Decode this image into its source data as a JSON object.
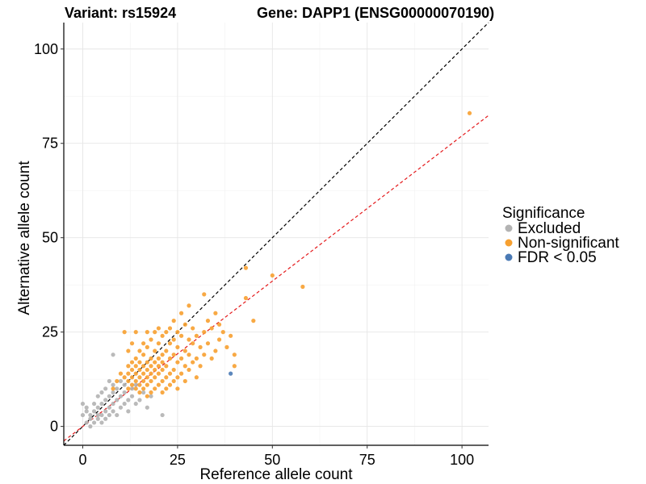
{
  "header": {
    "variant": "Variant: rs15924",
    "gene": "Gene: DAPP1 (ENSG00000070190)"
  },
  "chart_data": {
    "type": "scatter",
    "xlabel": "Reference allele count",
    "ylabel": "Alternative allele count",
    "xlim": [
      -5,
      107
    ],
    "ylim": [
      -5,
      107
    ],
    "xticks": [
      0,
      25,
      50,
      75,
      100
    ],
    "yticks": [
      0,
      25,
      50,
      75,
      100
    ],
    "grid": true,
    "legend_position": "right",
    "legend": {
      "title": "Significance",
      "items": [
        {
          "label": "Excluded",
          "color": "#b3b3b3"
        },
        {
          "label": "Non-significant",
          "color": "#f7a030"
        },
        {
          "label": "FDR < 0.05",
          "color": "#4a7ab5"
        }
      ]
    },
    "reference_lines": [
      {
        "name": "identity",
        "slope": 1,
        "intercept": 0,
        "color": "#000000",
        "dash": true
      },
      {
        "name": "fit",
        "slope": 0.77,
        "intercept": 0,
        "color": "#e41a1c",
        "dash": true
      }
    ],
    "series": [
      {
        "name": "Excluded",
        "color": "#b3b3b3",
        "points": [
          [
            0,
            3
          ],
          [
            0,
            6
          ],
          [
            1,
            1
          ],
          [
            1,
            4
          ],
          [
            1,
            5
          ],
          [
            2,
            0
          ],
          [
            2,
            2
          ],
          [
            2,
            3
          ],
          [
            3,
            1
          ],
          [
            3,
            4
          ],
          [
            3,
            6
          ],
          [
            4,
            2
          ],
          [
            4,
            3
          ],
          [
            4,
            5
          ],
          [
            4,
            8
          ],
          [
            5,
            1
          ],
          [
            5,
            3
          ],
          [
            5,
            6
          ],
          [
            5,
            9
          ],
          [
            6,
            2
          ],
          [
            6,
            4
          ],
          [
            6,
            7
          ],
          [
            6,
            10
          ],
          [
            7,
            3
          ],
          [
            7,
            5
          ],
          [
            7,
            8
          ],
          [
            7,
            12
          ],
          [
            8,
            4
          ],
          [
            8,
            6
          ],
          [
            8,
            9
          ],
          [
            8,
            11
          ],
          [
            8,
            19
          ],
          [
            9,
            3
          ],
          [
            9,
            7
          ],
          [
            9,
            10
          ],
          [
            10,
            5
          ],
          [
            10,
            8
          ],
          [
            10,
            12
          ],
          [
            11,
            6
          ],
          [
            11,
            9
          ],
          [
            11,
            11
          ],
          [
            12,
            4
          ],
          [
            12,
            7
          ],
          [
            13,
            8
          ],
          [
            13,
            10
          ],
          [
            14,
            6
          ],
          [
            14,
            11
          ],
          [
            15,
            7
          ],
          [
            16,
            9
          ],
          [
            17,
            5
          ],
          [
            18,
            8
          ],
          [
            21,
            3
          ]
        ]
      },
      {
        "name": "Non-significant",
        "color": "#f7a030",
        "points": [
          [
            8,
            10
          ],
          [
            9,
            12
          ],
          [
            10,
            14
          ],
          [
            11,
            13
          ],
          [
            11,
            25
          ],
          [
            12,
            10
          ],
          [
            12,
            12
          ],
          [
            12,
            14
          ],
          [
            12,
            16
          ],
          [
            12,
            20
          ],
          [
            13,
            11
          ],
          [
            13,
            13
          ],
          [
            13,
            15
          ],
          [
            13,
            17
          ],
          [
            13,
            22
          ],
          [
            14,
            10
          ],
          [
            14,
            12
          ],
          [
            14,
            14
          ],
          [
            14,
            16
          ],
          [
            14,
            18
          ],
          [
            14,
            25
          ],
          [
            15,
            9
          ],
          [
            15,
            11
          ],
          [
            15,
            13
          ],
          [
            15,
            15
          ],
          [
            15,
            17
          ],
          [
            15,
            20
          ],
          [
            16,
            10
          ],
          [
            16,
            12
          ],
          [
            16,
            14
          ],
          [
            16,
            16
          ],
          [
            16,
            19
          ],
          [
            16,
            22
          ],
          [
            17,
            8
          ],
          [
            17,
            11
          ],
          [
            17,
            13
          ],
          [
            17,
            15
          ],
          [
            17,
            17
          ],
          [
            17,
            21
          ],
          [
            17,
            25
          ],
          [
            18,
            9
          ],
          [
            18,
            12
          ],
          [
            18,
            14
          ],
          [
            18,
            16
          ],
          [
            18,
            18
          ],
          [
            18,
            23
          ],
          [
            19,
            10
          ],
          [
            19,
            13
          ],
          [
            19,
            15
          ],
          [
            19,
            17
          ],
          [
            19,
            20
          ],
          [
            19,
            25
          ],
          [
            20,
            11
          ],
          [
            20,
            14
          ],
          [
            20,
            16
          ],
          [
            20,
            18
          ],
          [
            20,
            22
          ],
          [
            20,
            26
          ],
          [
            21,
            9
          ],
          [
            21,
            12
          ],
          [
            21,
            15
          ],
          [
            21,
            17
          ],
          [
            21,
            19
          ],
          [
            21,
            24
          ],
          [
            22,
            10
          ],
          [
            22,
            13
          ],
          [
            22,
            16
          ],
          [
            22,
            20
          ],
          [
            22,
            25
          ],
          [
            23,
            11
          ],
          [
            23,
            14
          ],
          [
            23,
            18
          ],
          [
            23,
            22
          ],
          [
            23,
            26
          ],
          [
            24,
            12
          ],
          [
            24,
            15
          ],
          [
            24,
            19
          ],
          [
            24,
            23
          ],
          [
            24,
            28
          ],
          [
            25,
            10
          ],
          [
            25,
            13
          ],
          [
            25,
            17
          ],
          [
            25,
            21
          ],
          [
            25,
            25
          ],
          [
            26,
            14
          ],
          [
            26,
            18
          ],
          [
            26,
            24
          ],
          [
            26,
            30
          ],
          [
            27,
            12
          ],
          [
            27,
            16
          ],
          [
            27,
            20
          ],
          [
            27,
            27
          ],
          [
            28,
            15
          ],
          [
            28,
            19
          ],
          [
            28,
            23
          ],
          [
            28,
            32
          ],
          [
            29,
            17
          ],
          [
            29,
            22
          ],
          [
            29,
            26
          ],
          [
            30,
            13
          ],
          [
            30,
            18
          ],
          [
            30,
            24
          ],
          [
            31,
            16
          ],
          [
            31,
            21
          ],
          [
            32,
            19
          ],
          [
            32,
            25
          ],
          [
            32,
            35
          ],
          [
            33,
            22
          ],
          [
            33,
            28
          ],
          [
            34,
            18
          ],
          [
            34,
            26
          ],
          [
            35,
            20
          ],
          [
            35,
            30
          ],
          [
            36,
            23
          ],
          [
            36,
            27
          ],
          [
            37,
            25
          ],
          [
            38,
            21
          ],
          [
            39,
            24
          ],
          [
            40,
            19
          ],
          [
            40,
            16
          ],
          [
            43,
            42
          ],
          [
            43,
            34
          ],
          [
            45,
            28
          ],
          [
            50,
            40
          ],
          [
            58,
            37
          ],
          [
            102,
            83
          ]
        ]
      },
      {
        "name": "FDR < 0.05",
        "color": "#4a7ab5",
        "points": [
          [
            39,
            14
          ]
        ]
      }
    ]
  }
}
